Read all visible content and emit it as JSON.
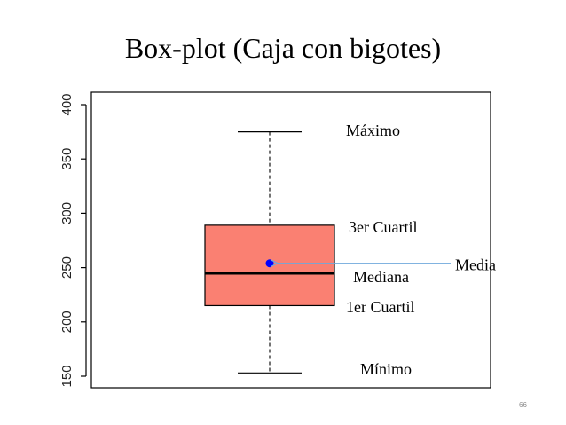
{
  "slide": {
    "title": "Box-plot (Caja con bigotes)",
    "page_number": "66"
  },
  "chart_data": {
    "type": "boxplot",
    "ylim": [
      150,
      400
    ],
    "y_ticks": [
      150,
      200,
      250,
      300,
      350,
      400
    ],
    "y_tick_labels": [
      "150",
      "200",
      "250",
      "300",
      "350",
      "400"
    ],
    "grid": false,
    "box": {
      "min": 153,
      "q1": 215,
      "median": 245,
      "q3": 289,
      "max": 375,
      "mean": 254,
      "fill_color": "#fa8072"
    },
    "mean_point_color": "#0000ff",
    "annotations": {
      "max": "Máximo",
      "q3": "3er Cuartil",
      "median": "Mediana",
      "q1": "1er Cuartil",
      "min": "Mínimo",
      "mean": "Media"
    },
    "mean_arrow_color": "#6fa8dc"
  }
}
